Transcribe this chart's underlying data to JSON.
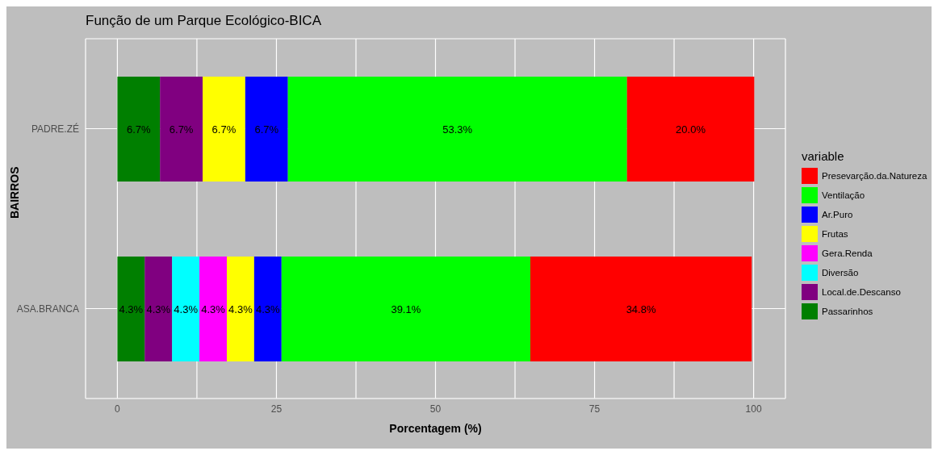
{
  "chart_data": {
    "type": "bar",
    "orientation": "horizontal",
    "stacked": true,
    "title": "Função de um Parque Ecológico-BICA",
    "xlabel": "Porcentagem (%)",
    "ylabel": "BAIRROS",
    "legend_title": "variable",
    "legend": "right",
    "grid": true,
    "categories": [
      "PADRE.ZÉ",
      "ASA.BRANCA"
    ],
    "xlim": [
      -5,
      105
    ],
    "xticks": [
      0,
      {
        "value": 12.5,
        "label": null
      },
      25,
      {
        "value": 37.5,
        "label": null
      },
      50,
      {
        "value": 62.5,
        "label": null
      },
      75,
      {
        "value": 87.5,
        "label": null
      },
      100
    ],
    "series": [
      {
        "name": "Passarinhos",
        "color": "#007f00",
        "values": [
          6.7,
          4.3
        ],
        "value_labels": [
          "6.7%",
          "4.3%"
        ]
      },
      {
        "name": "Local.de.Descanso",
        "color": "#800080",
        "values": [
          6.7,
          4.3
        ],
        "value_labels": [
          "6.7%",
          "4.3%"
        ]
      },
      {
        "name": "Diversão",
        "color": "#00ffff",
        "values": [
          null,
          4.3
        ],
        "value_labels": [
          null,
          "4.3%"
        ]
      },
      {
        "name": "Gera.Renda",
        "color": "#ff00ff",
        "values": [
          null,
          4.3
        ],
        "value_labels": [
          null,
          "4.3%"
        ]
      },
      {
        "name": "Frutas",
        "color": "#ffff00",
        "values": [
          6.7,
          4.3
        ],
        "value_labels": [
          "6.7%",
          "4.3%"
        ]
      },
      {
        "name": "Ar.Puro",
        "color": "#0000ff",
        "values": [
          6.7,
          4.3
        ],
        "value_labels": [
          "6.7%",
          "4.3%"
        ]
      },
      {
        "name": "Ventilação",
        "color": "#00ff00",
        "values": [
          53.3,
          39.1
        ],
        "value_labels": [
          "53.3%",
          "39.1%"
        ]
      },
      {
        "name": "Presevarção.da.Natureza",
        "color": "#ff0000",
        "values": [
          20.0,
          34.8
        ],
        "value_labels": [
          "20.0%",
          "34.8%"
        ]
      }
    ]
  }
}
